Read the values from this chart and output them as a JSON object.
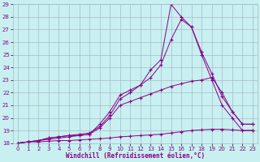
{
  "xlabel": "Windchill (Refroidissement éolien,°C)",
  "ylabel": "",
  "bg_color": "#c8f0f0",
  "grid_color": "#a8b8c8",
  "line_color": "#880088",
  "xlim": [
    -0.5,
    23.5
  ],
  "ylim": [
    18,
    29
  ],
  "xtick_vals": [
    0,
    1,
    2,
    3,
    4,
    5,
    6,
    7,
    8,
    9,
    10,
    11,
    12,
    13,
    14,
    15,
    16,
    17,
    18,
    19,
    20,
    21,
    22,
    23
  ],
  "ytick_vals": [
    18,
    19,
    20,
    21,
    22,
    23,
    24,
    25,
    26,
    27,
    28,
    29
  ],
  "lines": [
    {
      "x": [
        0,
        1,
        2,
        3,
        4,
        5,
        6,
        7,
        8,
        9,
        10,
        11,
        12,
        13,
        14,
        15,
        16,
        17,
        18,
        19,
        20,
        21,
        22,
        23
      ],
      "y": [
        18,
        18.1,
        18.1,
        18.15,
        18.2,
        18.2,
        18.25,
        18.3,
        18.35,
        18.4,
        18.5,
        18.55,
        18.6,
        18.65,
        18.7,
        18.8,
        18.9,
        19.0,
        19.05,
        19.1,
        19.1,
        19.05,
        19.0,
        19.0
      ]
    },
    {
      "x": [
        0,
        1,
        2,
        3,
        4,
        5,
        6,
        7,
        8,
        9,
        10,
        11,
        12,
        13,
        14,
        15,
        16,
        17,
        18,
        19,
        20,
        21,
        22,
        23
      ],
      "y": [
        18,
        18.1,
        18.2,
        18.3,
        18.4,
        18.5,
        18.6,
        18.7,
        19.2,
        20.0,
        21.0,
        21.3,
        21.6,
        21.9,
        22.2,
        22.5,
        22.7,
        22.9,
        23.0,
        23.2,
        22.0,
        20.5,
        19.5,
        19.5
      ]
    },
    {
      "x": [
        0,
        1,
        2,
        3,
        4,
        5,
        6,
        7,
        8,
        9,
        10,
        11,
        12,
        13,
        14,
        15,
        16,
        17,
        18,
        19,
        20,
        21,
        22,
        23
      ],
      "y": [
        18,
        18.1,
        18.2,
        18.4,
        18.5,
        18.6,
        18.6,
        18.7,
        19.5,
        20.5,
        21.8,
        22.2,
        22.6,
        23.2,
        24.2,
        26.2,
        27.8,
        27.2,
        25.2,
        23.5,
        21.7,
        20.5,
        19.5,
        19.5
      ]
    },
    {
      "x": [
        0,
        1,
        2,
        3,
        4,
        5,
        6,
        7,
        8,
        9,
        10,
        11,
        12,
        13,
        14,
        15,
        16,
        17,
        18,
        19,
        20,
        21,
        22,
        23
      ],
      "y": [
        18,
        18.1,
        18.2,
        18.4,
        18.5,
        18.6,
        18.7,
        18.8,
        19.3,
        20.2,
        21.5,
        22.0,
        22.6,
        23.8,
        24.6,
        29.0,
        28.0,
        27.2,
        25.0,
        23.0,
        21.0,
        20.0,
        19.0,
        19.0
      ]
    }
  ]
}
